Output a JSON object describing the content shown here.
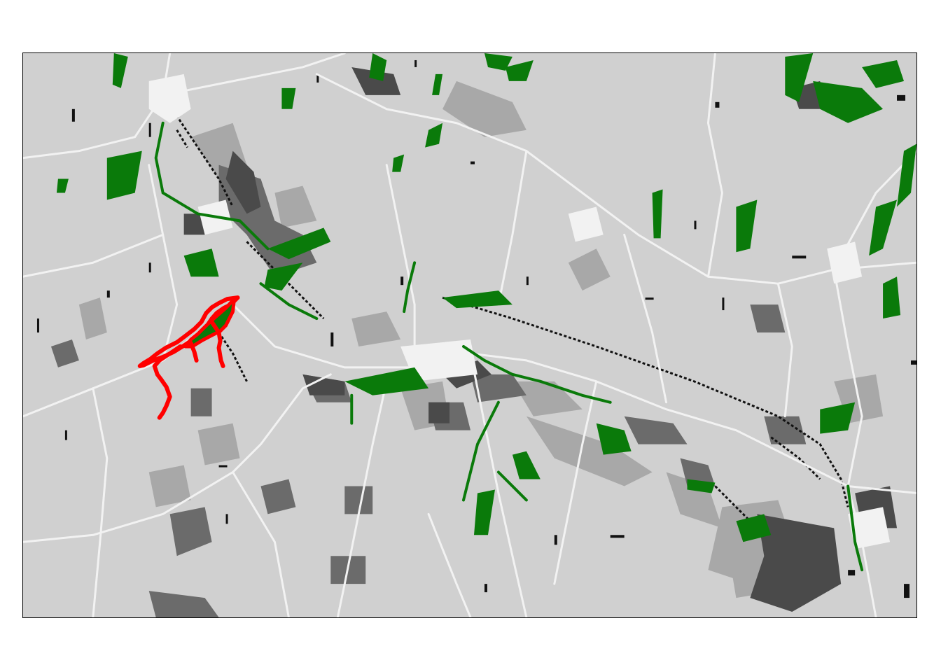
{
  "map": {
    "type": "land-cover raster",
    "legend": "none",
    "colors": {
      "background": "#d0d0d0",
      "roads": "#f2f2f2",
      "built": "#f2f2f2",
      "grey_medium": "#a8a8a8",
      "grey_dark": "#6b6b6b",
      "grey_darker": "#4a4a4a",
      "black": "#111111",
      "green": "#0a7a0a",
      "highlight": "#ff0000"
    },
    "icons": [
      "highlighted-region-outline"
    ]
  }
}
